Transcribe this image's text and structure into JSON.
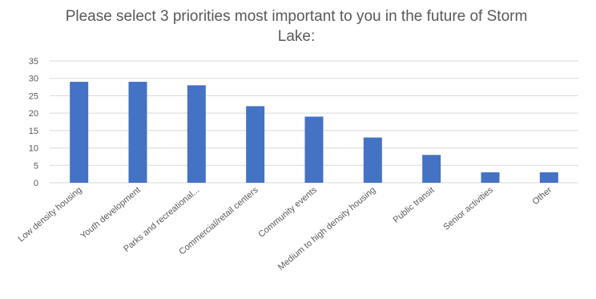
{
  "chart_data": {
    "type": "bar",
    "title": "Please select 3 priorities most important to you in the future of Storm Lake:",
    "categories": [
      "Low density housing",
      "Youth development",
      "Parks and recreational...",
      "Commercial/retail centers",
      "Community events",
      "Medium to high density housing",
      "Public transit",
      "Senior activities",
      "Other"
    ],
    "values": [
      29,
      29,
      28,
      22,
      19,
      13,
      8,
      3,
      3
    ],
    "xlabel": "",
    "ylabel": "",
    "ylim": [
      0,
      35
    ],
    "yticks": [
      "0",
      "5",
      "10",
      "15",
      "20",
      "25",
      "30",
      "35"
    ],
    "grid": true,
    "legend": "none",
    "bar_color": "#4472C4",
    "grid_color": "#d9d9d9"
  }
}
